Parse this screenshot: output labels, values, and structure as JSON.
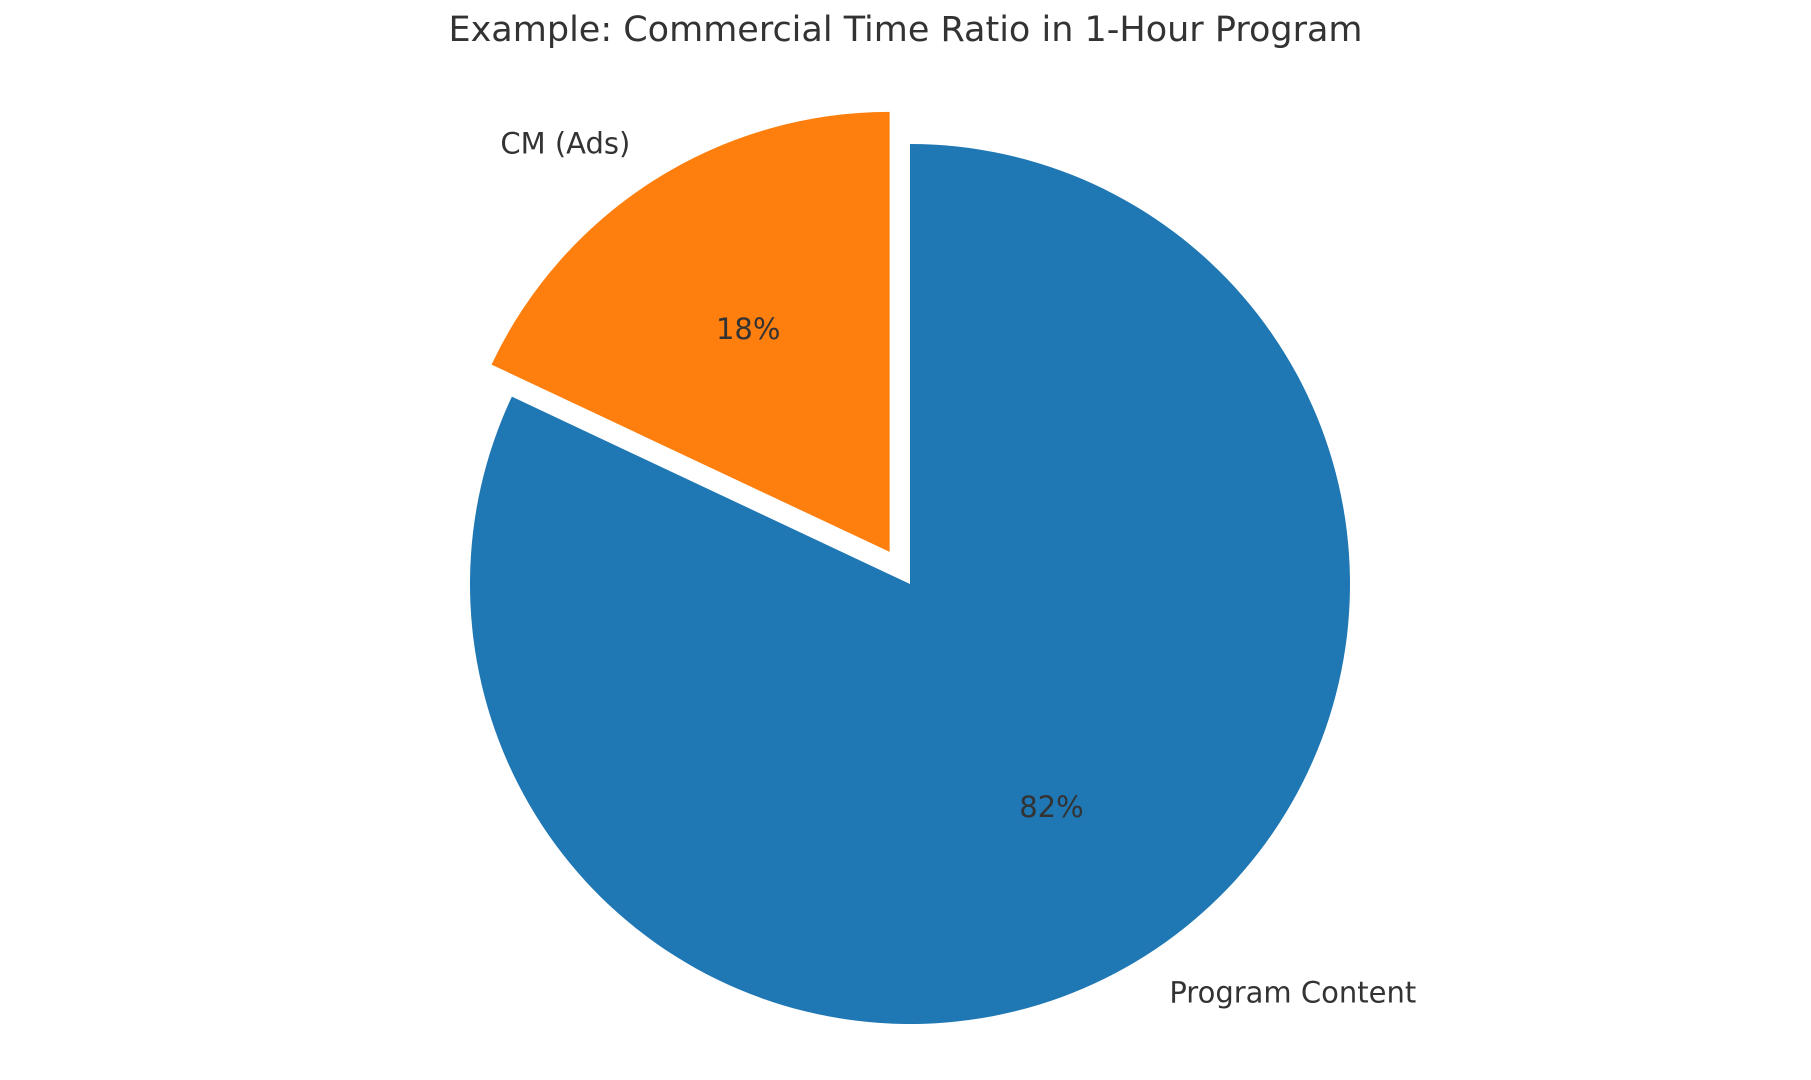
{
  "chart_data": {
    "type": "pie",
    "title": "Example: Commercial Time Ratio in 1-Hour Program",
    "start_angle_deg": 90,
    "direction": "counterclockwise",
    "slices": [
      {
        "label": "CM (Ads)",
        "value": 18,
        "pct_label": "18%",
        "color": "#ff7f0e",
        "exploded": true
      },
      {
        "label": "Program Content",
        "value": 82,
        "pct_label": "82%",
        "color": "#1f77b4",
        "exploded": false
      }
    ]
  }
}
